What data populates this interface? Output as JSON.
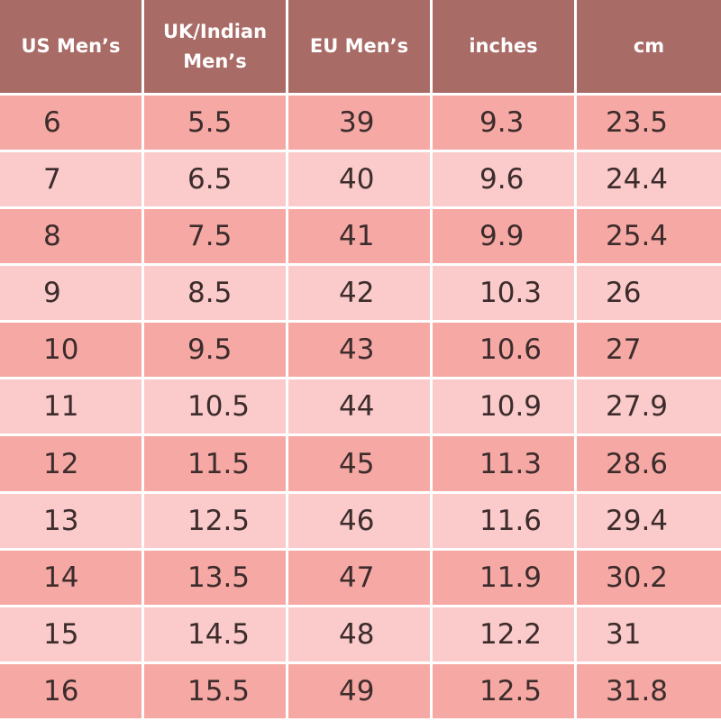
{
  "table": {
    "headers": [
      "US Men’s",
      "UK/Indian\nMen’s",
      "EU Men’s",
      "inches",
      "cm"
    ],
    "rows": [
      [
        "6",
        "5.5",
        "39",
        "9.3",
        "23.5"
      ],
      [
        "7",
        "6.5",
        "40",
        "9.6",
        "24.4"
      ],
      [
        "8",
        "7.5",
        "41",
        "9.9",
        "25.4"
      ],
      [
        "9",
        "8.5",
        "42",
        "10.3",
        "26"
      ],
      [
        "10",
        "9.5",
        "43",
        "10.6",
        "27"
      ],
      [
        "11",
        "10.5",
        "44",
        "10.9",
        "27.9"
      ],
      [
        "12",
        "11.5",
        "45",
        "11.3",
        "28.6"
      ],
      [
        "13",
        "12.5",
        "46",
        "11.6",
        "29.4"
      ],
      [
        "14",
        "13.5",
        "47",
        "11.9",
        "30.2"
      ],
      [
        "15",
        "14.5",
        "48",
        "12.2",
        "31"
      ],
      [
        "16",
        "15.5",
        "49",
        "12.5",
        "31.8"
      ]
    ]
  },
  "colors": {
    "header_background": "#a96b66",
    "header_text": "#ffffff",
    "row_dark": "#f6a8a4",
    "row_light": "#fbcaca",
    "cell_text": "#3c2c2c",
    "grid_lines": "#ffffff"
  }
}
